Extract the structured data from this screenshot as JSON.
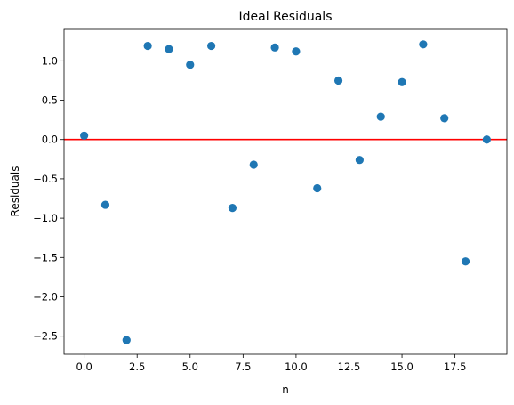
{
  "chart_data": {
    "type": "scatter",
    "title": "Ideal Residuals",
    "xlabel": "n",
    "ylabel": "Residuals",
    "xlim": [
      -0.95,
      19.95
    ],
    "ylim": [
      -2.73,
      1.4
    ],
    "x_ticks": [
      0.0,
      2.5,
      5.0,
      7.5,
      10.0,
      12.5,
      15.0,
      17.5
    ],
    "x_tick_labels": [
      "0.0",
      "2.5",
      "5.0",
      "7.5",
      "10.0",
      "12.5",
      "15.0",
      "17.5"
    ],
    "y_ticks": [
      1.0,
      0.5,
      0.0,
      -0.5,
      -1.0,
      -1.5,
      -2.0,
      -2.5
    ],
    "y_tick_labels": [
      "1.0",
      "0.5",
      "0.0",
      "−0.5",
      "−1.0",
      "−1.5",
      "−2.0",
      "−2.5"
    ],
    "grid": false,
    "series": [
      {
        "x": [
          0,
          1,
          2,
          3,
          4,
          5,
          6,
          7,
          8,
          9,
          10,
          11,
          12,
          13,
          14,
          15,
          16,
          17,
          18,
          19
        ],
        "y": [
          0.05,
          -0.83,
          -2.55,
          1.19,
          1.15,
          0.95,
          1.19,
          -0.87,
          -0.32,
          1.17,
          1.12,
          -0.62,
          0.75,
          -0.26,
          0.29,
          0.73,
          1.21,
          0.27,
          -1.55,
          0.0
        ],
        "color": "#1f77b4"
      }
    ],
    "reference_line": {
      "y": 0.0,
      "color": "#ff0000"
    }
  }
}
